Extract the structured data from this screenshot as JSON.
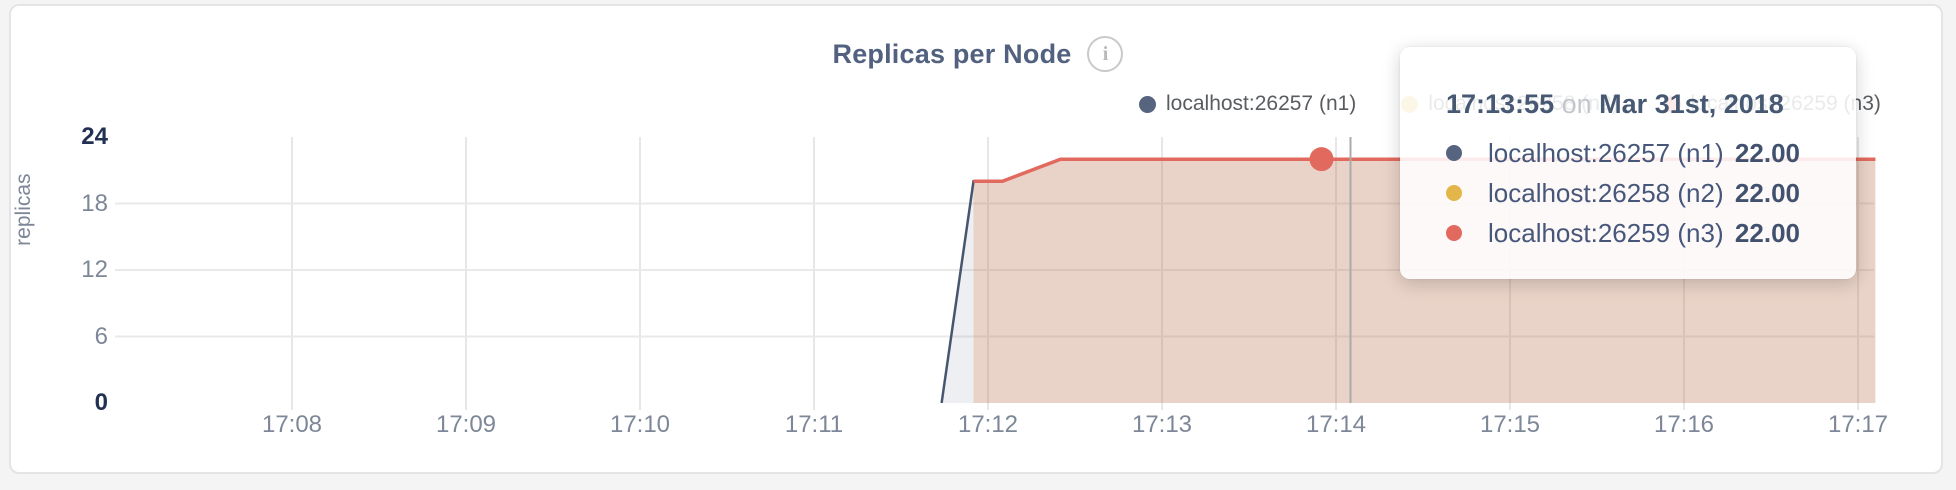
{
  "header": {
    "title": "Replicas per Node",
    "info_glyph": "i"
  },
  "legend": [
    {
      "label": "localhost:26257 (n1)",
      "color": "#566480"
    },
    {
      "label": "localhost:26258 (n2)",
      "color": "#e3b64a"
    },
    {
      "label": "localhost:26259 (n3)",
      "color": "#e2695e"
    }
  ],
  "tooltip": {
    "time": "17:13:55",
    "joiner": "on",
    "date": "Mar 31st, 2018",
    "rows": [
      {
        "label": "localhost:26257 (n1)",
        "value": "22.00",
        "color": "#566480"
      },
      {
        "label": "localhost:26258 (n2)",
        "value": "22.00",
        "color": "#e3b64a"
      },
      {
        "label": "localhost:26259 (n3)",
        "value": "22.00",
        "color": "#e2695e"
      }
    ]
  },
  "chart_data": {
    "type": "line",
    "title": "Replicas per Node",
    "ylabel": "replicas",
    "ylim": [
      0,
      24
    ],
    "y_ticks": [
      {
        "label": "24",
        "value": 24,
        "strong": true,
        "grid": false
      },
      {
        "label": "18",
        "value": 18,
        "strong": false,
        "grid": true
      },
      {
        "label": "12",
        "value": 12,
        "strong": false,
        "grid": true
      },
      {
        "label": "6",
        "value": 6,
        "strong": false,
        "grid": true
      },
      {
        "label": "0",
        "value": 0,
        "strong": true,
        "grid": false
      }
    ],
    "x_ticks": [
      "17:08",
      "17:09",
      "17:10",
      "17:11",
      "17:12",
      "17:13",
      "17:14",
      "17:15",
      "17:16",
      "17:17"
    ],
    "x_start_time": "17:08:00",
    "x_tick_interval_seconds": 60,
    "grid": true,
    "legend_position": "top-right",
    "series": [
      {
        "name": "localhost:26257 (n1)",
        "color": "#47566f",
        "fill": "rgba(86,100,128,0.10)",
        "line_width": 2.5,
        "points_sec_value": [
          [
            224,
            0
          ],
          [
            235,
            20
          ],
          [
            245,
            20
          ],
          [
            265,
            22
          ],
          [
            546,
            22
          ]
        ]
      },
      {
        "name": "localhost:26258 (n2)",
        "color": "#e3b64a",
        "fill": "rgba(223,178,61,0.10)",
        "line_width": 2.5,
        "points_sec_value": [
          [
            235,
            20
          ],
          [
            245,
            20
          ],
          [
            265,
            22
          ],
          [
            546,
            22
          ]
        ]
      },
      {
        "name": "localhost:26259 (n3)",
        "color": "#e2695e",
        "fill": "rgba(222,100,85,0.17)",
        "line_width": 3.5,
        "points_sec_value": [
          [
            235,
            20
          ],
          [
            245,
            20
          ],
          [
            265,
            22
          ],
          [
            546,
            22
          ]
        ]
      }
    ],
    "hover": {
      "time": "17:13:55",
      "time_sec": 355,
      "guideline_sec": 365,
      "highlighted_series": "localhost:26259 (n3)",
      "values": [
        22,
        22,
        22
      ],
      "dot_color": "#e2695e"
    }
  }
}
